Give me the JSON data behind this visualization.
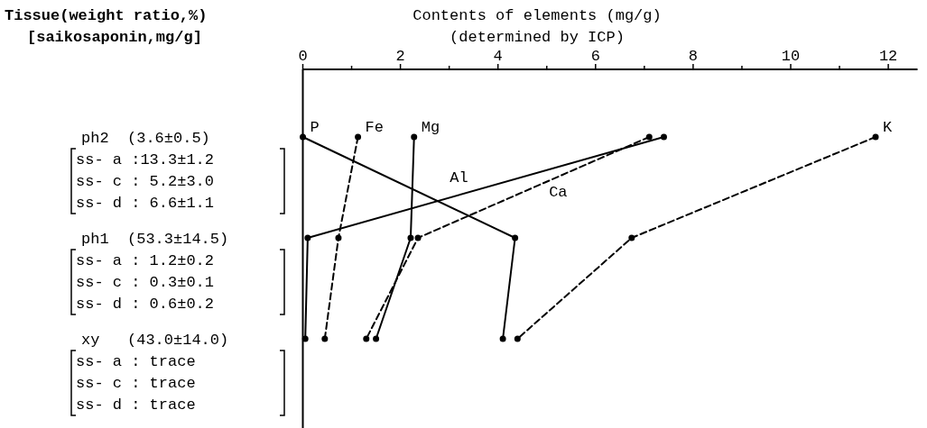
{
  "chart_data": {
    "type": "line",
    "orientation": "horizontal",
    "xlabel": "Contents of elements (mg/g)\n(determined by ICP)",
    "ylabel": "Tissue(weight ratio,%)\n[saikosaponin,mg/g]",
    "categories": [
      "ph2  (3.6±0.5)\nss- a :13.3±1.2\nss- c : 5.2±3.0\nss- d : 6.6±1.1",
      "ph1  (53.3±14.5)\nss- a : 1.2±0.2\nss- c : 0.3±0.1\nss- d : 0.6±0.2",
      "xy   (43.0±14.0)\nss- a : trace\nss- c : trace\nss- d : trace"
    ],
    "xlim": [
      0,
      12.6
    ],
    "xticks": [
      0,
      {
        "value": 1,
        "label": null
      },
      2,
      {
        "value": 3,
        "label": null
      },
      4,
      {
        "value": 5,
        "label": null
      },
      6,
      {
        "value": 7,
        "label": null
      },
      8,
      {
        "value": 9,
        "label": null
      },
      10,
      {
        "value": 11,
        "label": null
      },
      12
    ],
    "marker": "circle",
    "grid": false,
    "series": [
      {
        "name": "P",
        "color": "#000000",
        "line_style": "solid",
        "values": [
          0,
          4.35,
          4.1
        ]
      },
      {
        "name": "Fe",
        "color": "#000000",
        "line_style": "dashed",
        "values": [
          1.13,
          0.73,
          0.45
        ]
      },
      {
        "name": "Mg",
        "color": "#000000",
        "line_style": "solid",
        "values": [
          2.28,
          2.21,
          1.5
        ]
      },
      {
        "name": "Al",
        "color": "#000000",
        "line_style": "solid",
        "values": [
          7.4,
          0.1,
          0.05
        ]
      },
      {
        "name": "Ca",
        "color": "#000000",
        "line_style": "dashed",
        "values": [
          7.1,
          2.36,
          1.3
        ]
      },
      {
        "name": "K",
        "color": "#000000",
        "line_style": "dashed",
        "values": [
          11.74,
          6.74,
          4.4
        ]
      }
    ]
  }
}
